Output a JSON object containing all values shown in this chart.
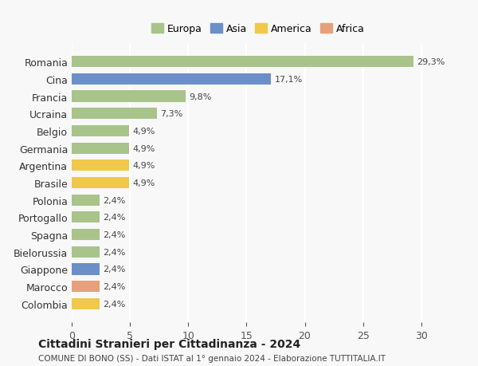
{
  "countries": [
    "Romania",
    "Cina",
    "Francia",
    "Ucraina",
    "Belgio",
    "Germania",
    "Argentina",
    "Brasile",
    "Polonia",
    "Portogallo",
    "Spagna",
    "Bielorussia",
    "Giappone",
    "Marocco",
    "Colombia"
  ],
  "values": [
    29.3,
    17.1,
    9.8,
    7.3,
    4.9,
    4.9,
    4.9,
    4.9,
    2.4,
    2.4,
    2.4,
    2.4,
    2.4,
    2.4,
    2.4
  ],
  "labels": [
    "29,3%",
    "17,1%",
    "9,8%",
    "7,3%",
    "4,9%",
    "4,9%",
    "4,9%",
    "4,9%",
    "2,4%",
    "2,4%",
    "2,4%",
    "2,4%",
    "2,4%",
    "2,4%",
    "2,4%"
  ],
  "continents": [
    "Europa",
    "Asia",
    "Europa",
    "Europa",
    "Europa",
    "Europa",
    "America",
    "America",
    "Europa",
    "Europa",
    "Europa",
    "Europa",
    "Asia",
    "Africa",
    "America"
  ],
  "colors": {
    "Europa": "#a8c48a",
    "Asia": "#6b8fc9",
    "America": "#f0c84a",
    "Africa": "#e8a07a"
  },
  "legend_colors": {
    "Europa": "#a8c48a",
    "Asia": "#6b8fc9",
    "America": "#f0c84a",
    "Africa": "#e8a07a"
  },
  "xlim": [
    0,
    32
  ],
  "xticks": [
    0,
    5,
    10,
    15,
    20,
    25,
    30
  ],
  "title": "Cittadini Stranieri per Cittadinanza - 2024",
  "subtitle": "COMUNE DI BONO (SS) - Dati ISTAT al 1° gennaio 2024 - Elaborazione TUTTITALIA.IT",
  "background_color": "#f8f8f8",
  "grid_color": "#ffffff",
  "bar_height": 0.65
}
